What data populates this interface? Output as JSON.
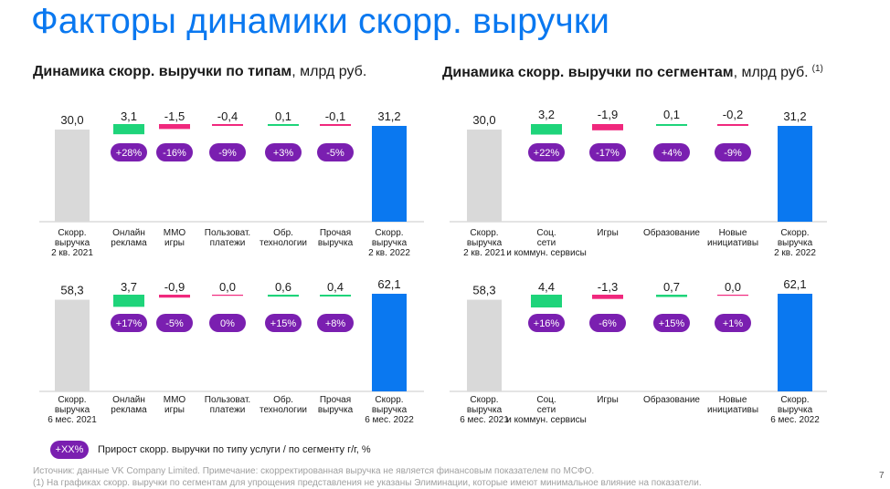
{
  "title": "Факторы динамики скорр. выручки",
  "panels": {
    "left": {
      "title_bold": "Динамика скорр. выручки по типам",
      "title_unit": ", млрд руб.",
      "footnote_mark": ""
    },
    "right": {
      "title_bold": "Динамика скорр. выручки по сегментам",
      "title_unit": ", млрд руб.",
      "footnote_mark": "(1)"
    }
  },
  "legend": {
    "pill": "+XX%",
    "text": "Прирост скорр. выручки по типу услуги / по сегменту г/г, %"
  },
  "footnotes": {
    "source": "Источник: данные VK Company Limited. Примечание: скорректированная выручка не является финансовым показателем по МСФО.",
    "note1": "(1) На графиках скорр. выручки по сегментам для упрощения представления не указаны Элиминации, которые имеют минимальное влияние на показатели."
  },
  "page_number": "7",
  "colors": {
    "title": "#0a78f0",
    "start_bar": "#d9d9d9",
    "end_bar": "#0a78f0",
    "increase": "#1ed47a",
    "decrease": "#f0287d",
    "pill": "#7a1fb0"
  },
  "chart_data": [
    {
      "type": "bar",
      "subtype": "waterfall",
      "panel": "left",
      "period_row": 1,
      "categories": [
        "Скорр. выручка 2 кв. 2021",
        "Онлайн реклама",
        "ММО игры",
        "Пользоват. платежи",
        "Обр. технологии",
        "Прочая выручка",
        "Скорр. выручка 2 кв. 2022"
      ],
      "values": [
        30.0,
        3.1,
        -1.5,
        -0.4,
        0.1,
        -0.1,
        31.2
      ],
      "value_labels": [
        "30,0",
        "3,1",
        "-1,5",
        "-0,4",
        "0,1",
        "-0,1",
        "31,2"
      ],
      "growth_labels": [
        "",
        "+28%",
        "-16%",
        "-9%",
        "+3%",
        "-5%",
        ""
      ]
    },
    {
      "type": "bar",
      "subtype": "waterfall",
      "panel": "right",
      "period_row": 1,
      "categories": [
        "Скорр. выручка 2 кв. 2021",
        "Соц. сети и коммун. сервисы",
        "Игры",
        "Образование",
        "Новые инициативы",
        "Скорр. выручка 2 кв. 2022"
      ],
      "values": [
        30.0,
        3.2,
        -1.9,
        0.1,
        -0.2,
        31.2
      ],
      "value_labels": [
        "30,0",
        "3,2",
        "-1,9",
        "0,1",
        "-0,2",
        "31,2"
      ],
      "growth_labels": [
        "",
        "+22%",
        "-17%",
        "+4%",
        "-9%",
        ""
      ]
    },
    {
      "type": "bar",
      "subtype": "waterfall",
      "panel": "left",
      "period_row": 2,
      "categories": [
        "Скорр. выручка 6 мес. 2021",
        "Онлайн реклама",
        "ММО игры",
        "Пользоват. платежи",
        "Обр. технологии",
        "Прочая выручка",
        "Скорр. выручка 6 мес. 2022"
      ],
      "values": [
        58.3,
        3.7,
        -0.9,
        0.0,
        0.6,
        0.4,
        62.1
      ],
      "value_labels": [
        "58,3",
        "3,7",
        "-0,9",
        "0,0",
        "0,6",
        "0,4",
        "62,1"
      ],
      "growth_labels": [
        "",
        "+17%",
        "-5%",
        "0%",
        "+15%",
        "+8%",
        ""
      ]
    },
    {
      "type": "bar",
      "subtype": "waterfall",
      "panel": "right",
      "period_row": 2,
      "categories": [
        "Скорр. выручка 6 мес. 2021",
        "Соц. сети и коммун. сервисы",
        "Игры",
        "Образование",
        "Новые инициативы",
        "Скорр. выручка 6 мес. 2022"
      ],
      "values": [
        58.3,
        4.4,
        -1.3,
        0.7,
        0.0,
        62.1
      ],
      "value_labels": [
        "58,3",
        "4,4",
        "-1,3",
        "0,7",
        "0,0",
        "62,1"
      ],
      "growth_labels": [
        "",
        "+16%",
        "-6%",
        "+15%",
        "+1%",
        ""
      ]
    }
  ]
}
